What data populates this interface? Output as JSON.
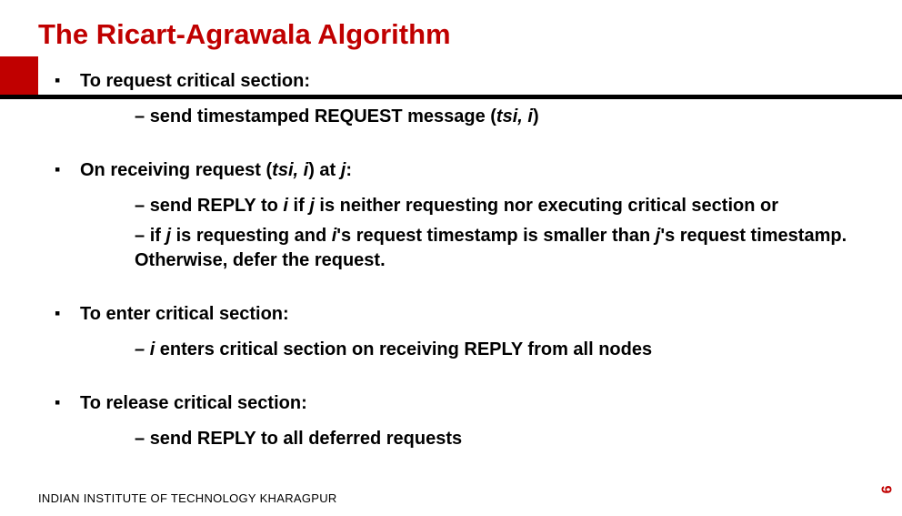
{
  "colors": {
    "accent": "#c00000",
    "text": "#000000",
    "background": "#ffffff"
  },
  "typography": {
    "title_fontsize": 31,
    "body_fontsize": 20,
    "footer_fontsize": 13,
    "font_family": "Arial",
    "bold": true
  },
  "title": "The Ricart-Agrawala Algorithm",
  "sections": [
    {
      "heading": "To request critical section:",
      "subs": [
        {
          "parts": [
            {
              "t": "send timestamped REQUEST message ("
            },
            {
              "t": "tsi, i",
              "italic": true
            },
            {
              "t": ")"
            }
          ]
        }
      ]
    },
    {
      "heading_parts": [
        {
          "t": "On receiving request ("
        },
        {
          "t": "tsi, i",
          "italic": true
        },
        {
          "t": ") at "
        },
        {
          "t": "j",
          "italic": true
        },
        {
          "t": ":"
        }
      ],
      "subs": [
        {
          "parts": [
            {
              "t": "send REPLY to "
            },
            {
              "t": "i",
              "italic": true
            },
            {
              "t": " if "
            },
            {
              "t": "j",
              "italic": true
            },
            {
              "t": " is neither requesting nor executing critical section or"
            }
          ]
        },
        {
          "parts": [
            {
              "t": "if "
            },
            {
              "t": "j",
              "italic": true
            },
            {
              "t": " is requesting and "
            },
            {
              "t": "i",
              "italic": true
            },
            {
              "t": "'s request timestamp is smaller than "
            },
            {
              "t": "j",
              "italic": true
            },
            {
              "t": "'s request timestamp. Otherwise, defer the request."
            }
          ]
        }
      ]
    },
    {
      "heading": "To enter critical section:",
      "subs": [
        {
          "dash_italic": true,
          "parts": [
            {
              "t": "i",
              "italic": true
            },
            {
              "t": " enters critical section on receiving REPLY from all nodes"
            }
          ]
        }
      ]
    },
    {
      "heading": "To release critical section:",
      "subs": [
        {
          "parts": [
            {
              "t": "send REPLY to all deferred requests"
            }
          ]
        }
      ]
    }
  ],
  "footer": "INDIAN INSTITUTE OF TECHNOLOGY KHARAGPUR",
  "page_number": "9"
}
